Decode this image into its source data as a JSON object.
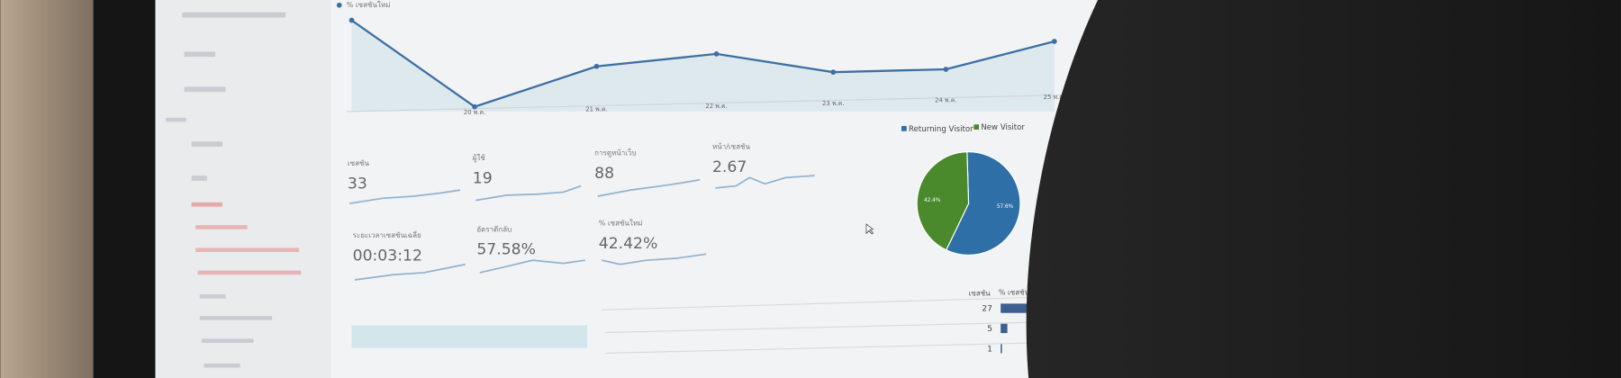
{
  "line_chart": {
    "type": "line",
    "legend": "% เซสชันใหม่",
    "categories": [
      null,
      "20 พ.ค.",
      "21 พ.ค.",
      "22 พ.ค.",
      "23 พ.ค.",
      "24 พ.ค.",
      "25 พ.ค."
    ],
    "values": [
      95,
      5,
      47,
      60,
      41,
      44,
      73
    ],
    "ylim": [
      0,
      100
    ],
    "color": "#3d6fa3"
  },
  "metrics": [
    {
      "label": "เซสชัน",
      "value": "33"
    },
    {
      "label": "ผู้ใช้",
      "value": "19"
    },
    {
      "label": "การดูหน้าเว็บ",
      "value": "88"
    },
    {
      "label": "หน้า/เซสชัน",
      "value": "2.67"
    },
    {
      "label": "ระยะเวลาเซสชันเฉลี่ย",
      "value": "00:03:12"
    },
    {
      "label": "อัตราตีกลับ",
      "value": "57.58%"
    },
    {
      "label": "% เซสชันใหม่",
      "value": "42.42%"
    }
  ],
  "pie_chart": {
    "type": "pie",
    "categories": [
      "Returning Visitor",
      "New Visitor"
    ],
    "values": [
      57.6,
      42.4
    ],
    "value_labels": [
      "57.6%",
      "42.4%"
    ],
    "colors": [
      "#2f6fa8",
      "#4b8a2c"
    ]
  },
  "table": {
    "columns": [
      "เซสชัน",
      "% เซสชัน"
    ],
    "values": [
      27,
      5,
      1
    ],
    "color": "#3d5f8f"
  }
}
